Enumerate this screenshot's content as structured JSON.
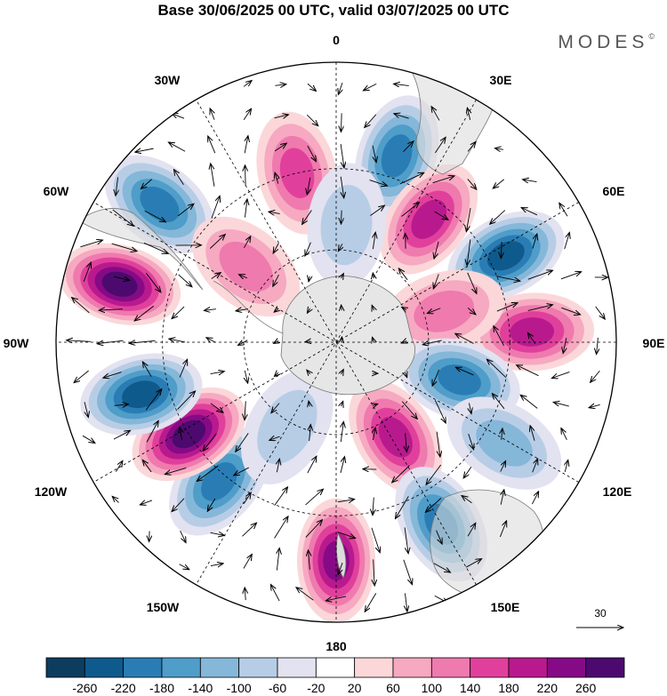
{
  "header": {
    "title": "Base 30/06/2025 00 UTC, valid 03/07/2025 00 UTC",
    "brand": "MODES",
    "brand_mark": "©"
  },
  "map": {
    "projection": "south-polar-stereographic",
    "longitude_labels": {
      "top": "0",
      "top_right": "30E",
      "right_upper": "60E",
      "right": "90E",
      "right_lower": "120E",
      "bottom_right": "150E",
      "bottom": "180",
      "bottom_left": "150W",
      "left_lower": "120W",
      "left": "90W",
      "left_upper": "60W",
      "top_left": "30W"
    },
    "reference_vector_label": "30",
    "anomaly_centres": [
      {
        "lon_deg": 347,
        "r": 0.62,
        "value": 120
      },
      {
        "lon_deg": 18,
        "r": 0.7,
        "value": -160
      },
      {
        "lon_deg": 37,
        "r": 0.55,
        "value": 170
      },
      {
        "lon_deg": 63,
        "r": 0.68,
        "value": -190
      },
      {
        "lon_deg": 87,
        "r": 0.7,
        "value": 180
      },
      {
        "lon_deg": 74,
        "r": 0.4,
        "value": 80
      },
      {
        "lon_deg": 107,
        "r": 0.46,
        "value": -150
      },
      {
        "lon_deg": 121,
        "r": 0.7,
        "value": -70
      },
      {
        "lon_deg": 148,
        "r": 0.4,
        "value": 150
      },
      {
        "lon_deg": 150,
        "r": 0.75,
        "value": -150
      },
      {
        "lon_deg": 180,
        "r": 0.78,
        "value": 200
      },
      {
        "lon_deg": 220,
        "r": 0.65,
        "value": -160
      },
      {
        "lon_deg": 238,
        "r": 0.62,
        "value": 260
      },
      {
        "lon_deg": 255,
        "r": 0.72,
        "value": -190
      },
      {
        "lon_deg": 285,
        "r": 0.8,
        "value": 230
      },
      {
        "lon_deg": 308,
        "r": 0.8,
        "value": -180
      },
      {
        "lon_deg": 310,
        "r": 0.42,
        "value": 70
      },
      {
        "lon_deg": 5,
        "r": 0.42,
        "value": -40
      },
      {
        "lon_deg": 210,
        "r": 0.35,
        "value": -50
      }
    ]
  },
  "colorbar": {
    "ticks": [
      "-260",
      "-220",
      "-180",
      "-140",
      "-100",
      "-60",
      "-20",
      "20",
      "60",
      "100",
      "140",
      "180",
      "220",
      "260"
    ],
    "colors": [
      "#0c3d5e",
      "#0f5a8c",
      "#2a7db4",
      "#4f9dc9",
      "#85b7d9",
      "#b7cde6",
      "#e2e2f0",
      "#ffffff",
      "#fbd7d9",
      "#f6a9c1",
      "#ef7aae",
      "#e0409c",
      "#b81a8e",
      "#860a86",
      "#4c0a6e"
    ]
  }
}
